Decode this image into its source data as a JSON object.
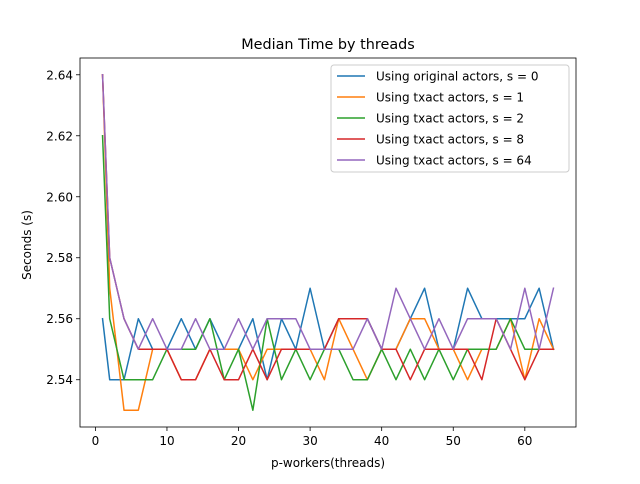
{
  "chart_data": {
    "type": "line",
    "title": "Median Time by threads",
    "xlabel": "p-workers(threads)",
    "ylabel": "Seconds (s)",
    "xlim": [
      -2.15,
      67.15
    ],
    "ylim": [
      2.5245,
      2.6455
    ],
    "xticks": [
      0,
      10,
      20,
      30,
      40,
      50,
      60
    ],
    "yticks": [
      2.54,
      2.56,
      2.58,
      2.6,
      2.62,
      2.64
    ],
    "ytick_labels": [
      "2.54",
      "2.56",
      "2.58",
      "2.60",
      "2.62",
      "2.64"
    ],
    "grid": false,
    "legend_position": "top-right",
    "x": [
      1,
      2,
      4,
      6,
      8,
      10,
      12,
      14,
      16,
      18,
      20,
      22,
      24,
      26,
      28,
      30,
      32,
      34,
      36,
      38,
      40,
      42,
      44,
      46,
      48,
      50,
      52,
      54,
      56,
      58,
      60,
      62,
      64
    ],
    "series": [
      {
        "name": "Using original actors, s = 0",
        "color": "#1f77b4",
        "values": [
          2.56,
          2.54,
          2.54,
          2.56,
          2.55,
          2.55,
          2.56,
          2.55,
          2.56,
          2.55,
          2.55,
          2.56,
          2.54,
          2.56,
          2.55,
          2.57,
          2.55,
          2.56,
          2.56,
          2.56,
          2.55,
          2.55,
          2.56,
          2.57,
          2.55,
          2.55,
          2.57,
          2.56,
          2.56,
          2.56,
          2.56,
          2.57,
          2.55
        ]
      },
      {
        "name": "Using txact actors, s = 1",
        "color": "#ff7f0e",
        "values": [
          2.64,
          2.57,
          2.53,
          2.53,
          2.55,
          2.55,
          2.54,
          2.54,
          2.55,
          2.55,
          2.55,
          2.54,
          2.55,
          2.55,
          2.55,
          2.55,
          2.54,
          2.56,
          2.55,
          2.54,
          2.55,
          2.55,
          2.56,
          2.56,
          2.55,
          2.55,
          2.54,
          2.55,
          2.55,
          2.56,
          2.54,
          2.56,
          2.55
        ]
      },
      {
        "name": "Using txact actors, s = 2",
        "color": "#2ca02c",
        "values": [
          2.62,
          2.56,
          2.54,
          2.54,
          2.54,
          2.55,
          2.55,
          2.55,
          2.56,
          2.54,
          2.55,
          2.53,
          2.56,
          2.54,
          2.55,
          2.54,
          2.55,
          2.55,
          2.54,
          2.54,
          2.55,
          2.54,
          2.55,
          2.54,
          2.55,
          2.54,
          2.55,
          2.55,
          2.55,
          2.56,
          2.55,
          2.55,
          2.55
        ]
      },
      {
        "name": "Using txact actors, s = 8",
        "color": "#d62728",
        "values": [
          2.64,
          2.58,
          2.56,
          2.55,
          2.55,
          2.55,
          2.54,
          2.54,
          2.55,
          2.54,
          2.54,
          2.55,
          2.54,
          2.55,
          2.55,
          2.55,
          2.55,
          2.56,
          2.56,
          2.56,
          2.55,
          2.55,
          2.54,
          2.55,
          2.55,
          2.55,
          2.55,
          2.54,
          2.56,
          2.55,
          2.54,
          2.55,
          2.55
        ]
      },
      {
        "name": "Using txact actors, s = 64",
        "color": "#9467bd",
        "values": [
          2.64,
          2.58,
          2.56,
          2.55,
          2.56,
          2.55,
          2.55,
          2.56,
          2.55,
          2.55,
          2.56,
          2.55,
          2.56,
          2.56,
          2.56,
          2.55,
          2.55,
          2.55,
          2.55,
          2.56,
          2.55,
          2.57,
          2.56,
          2.55,
          2.56,
          2.55,
          2.56,
          2.56,
          2.56,
          2.55,
          2.57,
          2.55,
          2.57
        ]
      }
    ]
  }
}
